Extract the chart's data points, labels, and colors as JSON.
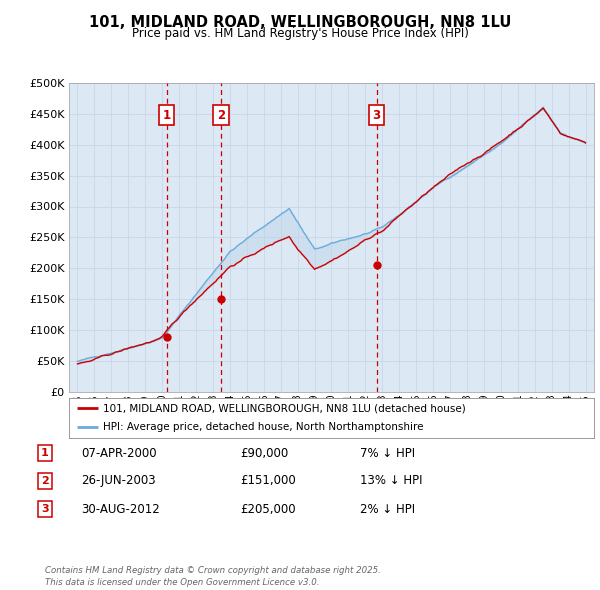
{
  "title": "101, MIDLAND ROAD, WELLINGBOROUGH, NN8 1LU",
  "subtitle": "Price paid vs. HM Land Registry's House Price Index (HPI)",
  "legend_line1": "101, MIDLAND ROAD, WELLINGBOROUGH, NN8 1LU (detached house)",
  "legend_line2": "HPI: Average price, detached house, North Northamptonshire",
  "footnote": "Contains HM Land Registry data © Crown copyright and database right 2025.\nThis data is licensed under the Open Government Licence v3.0.",
  "sale_markers": [
    {
      "label": "1",
      "date": "07-APR-2000",
      "price": 90000,
      "pct": "7%",
      "x": 2000.27
    },
    {
      "label": "2",
      "date": "26-JUN-2003",
      "price": 151000,
      "pct": "13%",
      "x": 2003.48
    },
    {
      "label": "3",
      "date": "30-AUG-2012",
      "price": 205000,
      "pct": "2%",
      "x": 2012.66
    }
  ],
  "table_rows": [
    {
      "num": "1",
      "date": "07-APR-2000",
      "price": "£90,000",
      "pct": "7% ↓ HPI"
    },
    {
      "num": "2",
      "date": "26-JUN-2003",
      "price": "£151,000",
      "pct": "13% ↓ HPI"
    },
    {
      "num": "3",
      "date": "30-AUG-2012",
      "price": "£205,000",
      "pct": "2% ↓ HPI"
    }
  ],
  "ylim": [
    0,
    500000
  ],
  "yticks": [
    0,
    50000,
    100000,
    150000,
    200000,
    250000,
    300000,
    350000,
    400000,
    450000,
    500000
  ],
  "xlim_start": 1994.5,
  "xlim_end": 2025.5,
  "xticks": [
    1995,
    1996,
    1997,
    1998,
    1999,
    2000,
    2001,
    2002,
    2003,
    2004,
    2005,
    2006,
    2007,
    2008,
    2009,
    2010,
    2011,
    2012,
    2013,
    2014,
    2015,
    2016,
    2017,
    2018,
    2019,
    2020,
    2021,
    2022,
    2023,
    2024,
    2025
  ],
  "hpi_color": "#6aaddb",
  "price_color": "#cc0000",
  "marker_box_color": "#cc0000",
  "vline_color": "#cc0000",
  "bg_color": "#ffffff",
  "plot_bg_color": "#dce9f5",
  "grid_color": "#c8d8e8"
}
